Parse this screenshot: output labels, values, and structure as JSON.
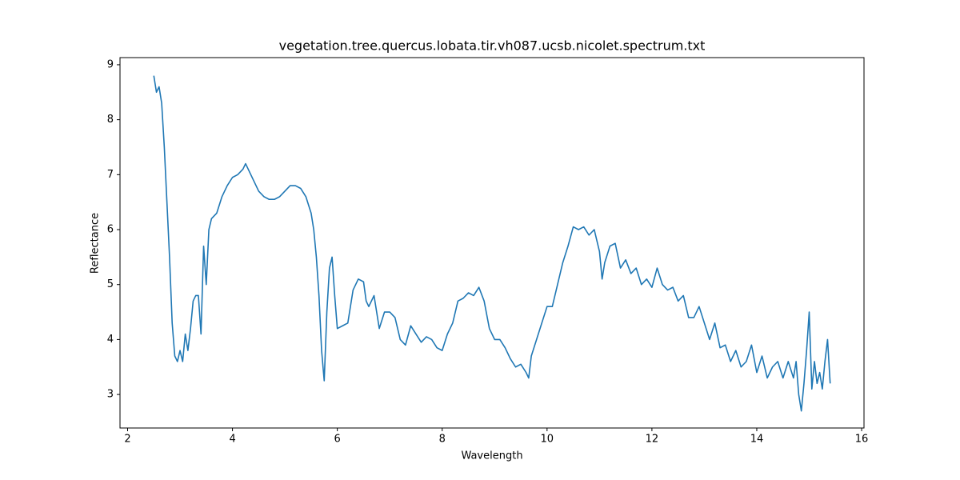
{
  "chart_data": {
    "type": "line",
    "title": "vegetation.tree.quercus.lobata.tir.vh087.ucsb.nicolet.spectrum.txt",
    "x_label": "Wavelength",
    "y_label": "Reflectance",
    "x": [
      2.5,
      2.55,
      2.6,
      2.65,
      2.7,
      2.75,
      2.8,
      2.85,
      2.9,
      2.95,
      3.0,
      3.05,
      3.1,
      3.15,
      3.2,
      3.25,
      3.3,
      3.35,
      3.4,
      3.45,
      3.5,
      3.55,
      3.6,
      3.7,
      3.8,
      3.9,
      4.0,
      4.1,
      4.2,
      4.25,
      4.3,
      4.4,
      4.5,
      4.6,
      4.7,
      4.8,
      4.9,
      5.0,
      5.1,
      5.2,
      5.3,
      5.4,
      5.5,
      5.55,
      5.6,
      5.65,
      5.7,
      5.75,
      5.8,
      5.85,
      5.9,
      5.95,
      6.0,
      6.1,
      6.2,
      6.3,
      6.4,
      6.5,
      6.55,
      6.6,
      6.7,
      6.8,
      6.9,
      7.0,
      7.1,
      7.2,
      7.3,
      7.4,
      7.5,
      7.6,
      7.7,
      7.8,
      7.9,
      8.0,
      8.1,
      8.2,
      8.3,
      8.4,
      8.5,
      8.6,
      8.7,
      8.8,
      8.9,
      9.0,
      9.1,
      9.2,
      9.3,
      9.4,
      9.5,
      9.6,
      9.65,
      9.7,
      9.8,
      9.9,
      10.0,
      10.1,
      10.2,
      10.3,
      10.4,
      10.5,
      10.6,
      10.7,
      10.8,
      10.9,
      11.0,
      11.05,
      11.1,
      11.2,
      11.3,
      11.4,
      11.5,
      11.6,
      11.7,
      11.8,
      11.9,
      12.0,
      12.1,
      12.2,
      12.3,
      12.4,
      12.5,
      12.6,
      12.7,
      12.8,
      12.9,
      13.0,
      13.1,
      13.2,
      13.3,
      13.4,
      13.5,
      13.6,
      13.7,
      13.8,
      13.9,
      14.0,
      14.1,
      14.2,
      14.3,
      14.4,
      14.5,
      14.6,
      14.7,
      14.75,
      14.8,
      14.85,
      14.9,
      14.95,
      15.0,
      15.05,
      15.1,
      15.15,
      15.2,
      15.25,
      15.3,
      15.35,
      15.4
    ],
    "values": [
      8.8,
      8.5,
      8.6,
      8.3,
      7.5,
      6.5,
      5.5,
      4.3,
      3.7,
      3.6,
      3.8,
      3.6,
      4.1,
      3.8,
      4.2,
      4.7,
      4.8,
      4.8,
      4.1,
      5.7,
      5.0,
      6.0,
      6.2,
      6.3,
      6.6,
      6.8,
      6.95,
      7.0,
      7.1,
      7.2,
      7.1,
      6.9,
      6.7,
      6.6,
      6.55,
      6.55,
      6.6,
      6.7,
      6.8,
      6.8,
      6.75,
      6.6,
      6.3,
      6.0,
      5.5,
      4.8,
      3.8,
      3.25,
      4.5,
      5.3,
      5.5,
      4.8,
      4.2,
      4.25,
      4.3,
      4.9,
      5.1,
      5.05,
      4.7,
      4.6,
      4.8,
      4.2,
      4.5,
      4.5,
      4.4,
      4.0,
      3.9,
      4.25,
      4.1,
      3.95,
      4.05,
      4.0,
      3.85,
      3.8,
      4.1,
      4.3,
      4.7,
      4.75,
      4.85,
      4.8,
      4.95,
      4.7,
      4.2,
      4.0,
      4.0,
      3.85,
      3.65,
      3.5,
      3.55,
      3.4,
      3.3,
      3.7,
      4.0,
      4.3,
      4.6,
      4.6,
      5.0,
      5.4,
      5.7,
      6.05,
      6.0,
      6.05,
      5.9,
      6.0,
      5.6,
      5.1,
      5.4,
      5.7,
      5.75,
      5.3,
      5.45,
      5.2,
      5.3,
      5.0,
      5.1,
      4.95,
      5.3,
      5.0,
      4.9,
      4.95,
      4.7,
      4.8,
      4.4,
      4.4,
      4.6,
      4.3,
      4.0,
      4.3,
      3.85,
      3.9,
      3.6,
      3.8,
      3.5,
      3.6,
      3.9,
      3.4,
      3.7,
      3.3,
      3.5,
      3.6,
      3.3,
      3.6,
      3.3,
      3.6,
      3.0,
      2.7,
      3.2,
      3.8,
      4.5,
      3.1,
      3.6,
      3.2,
      3.4,
      3.1,
      3.6,
      4.0,
      3.2
    ],
    "color": "#1f77b4",
    "xlim": [
      1.855,
      16.045
    ],
    "ylim": [
      2.39,
      9.13
    ],
    "xticks": [
      2,
      4,
      6,
      8,
      10,
      12,
      14,
      16
    ],
    "yticks": [
      3,
      4,
      5,
      6,
      7,
      8,
      9
    ],
    "grid": false
  }
}
